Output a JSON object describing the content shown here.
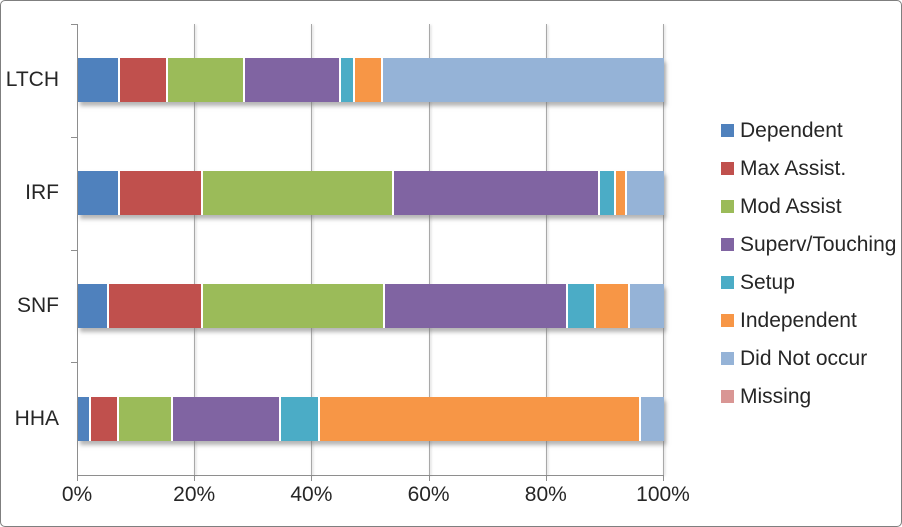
{
  "chart_data": {
    "type": "bar",
    "orientation": "horizontal",
    "stacked": true,
    "title": "",
    "xlabel": "",
    "ylabel": "",
    "units": "%",
    "xlim": [
      0,
      100
    ],
    "grid": true,
    "legend_position": "right",
    "categories": [
      "LTCH",
      "IRF",
      "SNF",
      "HHA"
    ],
    "x_ticks": [
      {
        "label": "0%",
        "value": 0
      },
      {
        "label": "20%",
        "value": 20
      },
      {
        "label": "40%",
        "value": 40
      },
      {
        "label": "60%",
        "value": 60
      },
      {
        "label": "80%",
        "value": 80
      },
      {
        "label": "100%",
        "value": 100
      }
    ],
    "series": [
      {
        "name": "Dependent",
        "color": "#4F81BD",
        "values": [
          7,
          7,
          5,
          2
        ]
      },
      {
        "name": "Max Assist.",
        "color": "#C0504D",
        "values": [
          8,
          14,
          16,
          4.5
        ]
      },
      {
        "name": "Mod Assist",
        "color": "#9BBB59",
        "values": [
          13,
          33,
          31.5,
          9
        ]
      },
      {
        "name": "Superv/Touching",
        "color": "#8064A2",
        "values": [
          16.5,
          35.5,
          31.5,
          18.5
        ]
      },
      {
        "name": "Setup",
        "color": "#4BACC6",
        "values": [
          2,
          2.5,
          4.5,
          6.5
        ]
      },
      {
        "name": "Independent",
        "color": "#F79646",
        "values": [
          4.5,
          1.5,
          5.5,
          55.5
        ]
      },
      {
        "name": "Did Not occur",
        "color": "#95B3D7",
        "values": [
          49,
          6.5,
          6,
          4
        ]
      },
      {
        "name": "Missing",
        "color": "#D99694",
        "values": [
          0,
          0,
          0,
          0
        ]
      }
    ]
  }
}
